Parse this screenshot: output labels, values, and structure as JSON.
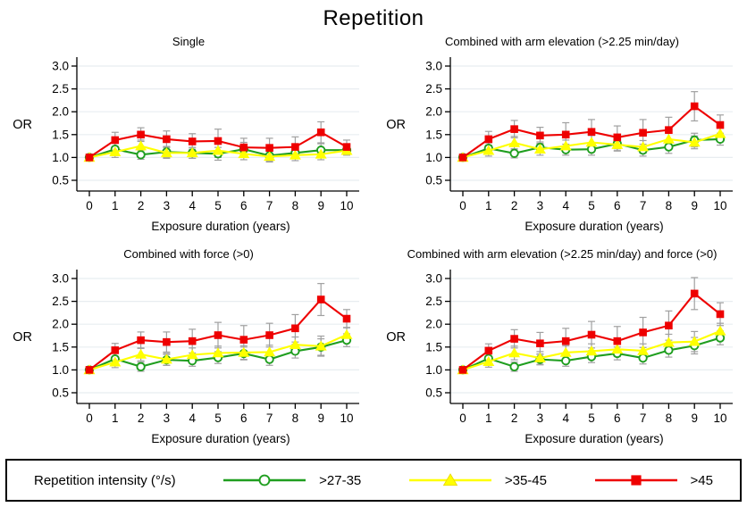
{
  "page": {
    "title": "Repetition"
  },
  "legend": {
    "title": "Repetition intensity (°/s)",
    "entries": [
      {
        "label": ">27-35",
        "color": "#1f9e1f",
        "marker": "circle-open"
      },
      {
        "label": ">35-45",
        "color": "#ffff00",
        "edge": "#e8d400",
        "marker": "triangle"
      },
      {
        "label": ">45",
        "color": "#ee0000",
        "marker": "square"
      }
    ]
  },
  "style": {
    "grid_color": "#e8edf0",
    "axis_color": "#000000",
    "errorbar_color": "#a0a0a0"
  },
  "chart_data": [
    {
      "type": "line",
      "title": "Single",
      "ylabel": "OR",
      "xlabel": "Exposure duration (years)",
      "x": [
        0,
        1,
        2,
        3,
        4,
        5,
        6,
        7,
        8,
        9,
        10
      ],
      "ylim": [
        0.5,
        3.0
      ],
      "yticks": [
        0.5,
        1.0,
        1.5,
        2.0,
        2.5,
        3.0
      ],
      "grid": true,
      "series": [
        {
          "name": ">27-35",
          "color": "#1f9e1f",
          "marker": "circle-open",
          "values": [
            1.0,
            1.18,
            1.06,
            1.12,
            1.1,
            1.08,
            1.18,
            1.04,
            1.1,
            1.16,
            1.16
          ],
          "err": [
            0,
            0.13,
            0.1,
            0.12,
            0.12,
            0.14,
            0.15,
            0.12,
            0.12,
            0.14,
            0.1
          ]
        },
        {
          "name": ">35-45",
          "color": "#ffff00",
          "marker": "triangle",
          "values": [
            1.0,
            1.12,
            1.25,
            1.1,
            1.1,
            1.15,
            1.08,
            1.02,
            1.05,
            1.07,
            1.15
          ],
          "err": [
            0,
            0.12,
            0.13,
            0.12,
            0.12,
            0.15,
            0.13,
            0.12,
            0.12,
            0.12,
            0.1
          ]
        },
        {
          "name": ">45",
          "color": "#ee0000",
          "marker": "square",
          "values": [
            1.0,
            1.38,
            1.5,
            1.4,
            1.35,
            1.36,
            1.22,
            1.21,
            1.23,
            1.55,
            1.23
          ],
          "err": [
            0,
            0.17,
            0.15,
            0.18,
            0.17,
            0.26,
            0.2,
            0.21,
            0.22,
            0.23,
            0.15
          ]
        }
      ]
    },
    {
      "type": "line",
      "title": "Combined with arm elevation (>2.25 min/day)",
      "ylabel": "OR",
      "xlabel": "Exposure duration (years)",
      "x": [
        0,
        1,
        2,
        3,
        4,
        5,
        6,
        7,
        8,
        9,
        10
      ],
      "ylim": [
        0.5,
        3.0
      ],
      "yticks": [
        0.5,
        1.0,
        1.5,
        2.0,
        2.5,
        3.0
      ],
      "grid": true,
      "series": [
        {
          "name": ">27-35",
          "color": "#1f9e1f",
          "marker": "circle-open",
          "values": [
            1.0,
            1.2,
            1.09,
            1.22,
            1.17,
            1.18,
            1.3,
            1.16,
            1.23,
            1.38,
            1.4
          ],
          "err": [
            0,
            0.12,
            0.1,
            0.12,
            0.12,
            0.13,
            0.15,
            0.13,
            0.14,
            0.15,
            0.13
          ]
        },
        {
          "name": ">35-45",
          "color": "#ffff00",
          "marker": "triangle",
          "values": [
            1.0,
            1.15,
            1.32,
            1.18,
            1.25,
            1.33,
            1.28,
            1.23,
            1.4,
            1.33,
            1.52
          ],
          "err": [
            0,
            0.12,
            0.14,
            0.13,
            0.13,
            0.15,
            0.14,
            0.14,
            0.16,
            0.14,
            0.15
          ]
        },
        {
          "name": ">45",
          "color": "#ee0000",
          "marker": "square",
          "values": [
            1.0,
            1.4,
            1.62,
            1.48,
            1.5,
            1.56,
            1.44,
            1.54,
            1.6,
            2.12,
            1.71
          ],
          "err": [
            0,
            0.17,
            0.19,
            0.18,
            0.26,
            0.27,
            0.25,
            0.29,
            0.28,
            0.32,
            0.22
          ]
        }
      ]
    },
    {
      "type": "line",
      "title": "Combined with force (>0)",
      "ylabel": "OR",
      "xlabel": "Exposure duration (years)",
      "x": [
        0,
        1,
        2,
        3,
        4,
        5,
        6,
        7,
        8,
        9,
        10
      ],
      "ylim": [
        0.5,
        3.0
      ],
      "yticks": [
        0.5,
        1.0,
        1.5,
        2.0,
        2.5,
        3.0
      ],
      "grid": true,
      "series": [
        {
          "name": ">27-35",
          "color": "#1f9e1f",
          "marker": "circle-open",
          "values": [
            1.0,
            1.24,
            1.07,
            1.22,
            1.2,
            1.27,
            1.36,
            1.23,
            1.41,
            1.5,
            1.65
          ],
          "err": [
            0,
            0.13,
            0.1,
            0.12,
            0.12,
            0.13,
            0.14,
            0.13,
            0.15,
            0.18,
            0.14
          ]
        },
        {
          "name": ">35-45",
          "color": "#ffff00",
          "marker": "triangle",
          "values": [
            1.0,
            1.17,
            1.34,
            1.23,
            1.33,
            1.37,
            1.38,
            1.39,
            1.55,
            1.52,
            1.77
          ],
          "err": [
            0,
            0.12,
            0.14,
            0.13,
            0.15,
            0.15,
            0.15,
            0.15,
            0.17,
            0.22,
            0.16
          ]
        },
        {
          "name": ">45",
          "color": "#ee0000",
          "marker": "square",
          "values": [
            1.0,
            1.43,
            1.65,
            1.61,
            1.63,
            1.76,
            1.66,
            1.76,
            1.91,
            2.54,
            2.12
          ],
          "err": [
            0,
            0.15,
            0.18,
            0.22,
            0.26,
            0.28,
            0.31,
            0.26,
            0.3,
            0.35,
            0.2
          ]
        }
      ]
    },
    {
      "type": "line",
      "title": "Combined with arm elevation (>2.25 min/day) and force (>0)",
      "ylabel": "OR",
      "xlabel": "Exposure duration (years)",
      "x": [
        0,
        1,
        2,
        3,
        4,
        5,
        6,
        7,
        8,
        9,
        10
      ],
      "ylim": [
        0.5,
        3.0
      ],
      "yticks": [
        0.5,
        1.0,
        1.5,
        2.0,
        2.5,
        3.0
      ],
      "grid": true,
      "series": [
        {
          "name": ">27-35",
          "color": "#1f9e1f",
          "marker": "circle-open",
          "values": [
            1.0,
            1.25,
            1.07,
            1.23,
            1.2,
            1.29,
            1.36,
            1.26,
            1.43,
            1.53,
            1.7
          ],
          "err": [
            0,
            0.13,
            0.1,
            0.12,
            0.12,
            0.13,
            0.14,
            0.13,
            0.15,
            0.18,
            0.15
          ]
        },
        {
          "name": ">35-45",
          "color": "#ffff00",
          "marker": "triangle",
          "values": [
            1.0,
            1.18,
            1.37,
            1.26,
            1.38,
            1.41,
            1.45,
            1.42,
            1.6,
            1.62,
            1.85
          ],
          "err": [
            0,
            0.12,
            0.15,
            0.14,
            0.15,
            0.16,
            0.16,
            0.15,
            0.18,
            0.22,
            0.17
          ]
        },
        {
          "name": ">45",
          "color": "#ee0000",
          "marker": "square",
          "values": [
            1.0,
            1.42,
            1.68,
            1.58,
            1.63,
            1.77,
            1.63,
            1.82,
            1.97,
            2.67,
            2.22
          ],
          "err": [
            0,
            0.15,
            0.2,
            0.24,
            0.28,
            0.29,
            0.32,
            0.33,
            0.32,
            0.35,
            0.25
          ]
        }
      ]
    }
  ]
}
